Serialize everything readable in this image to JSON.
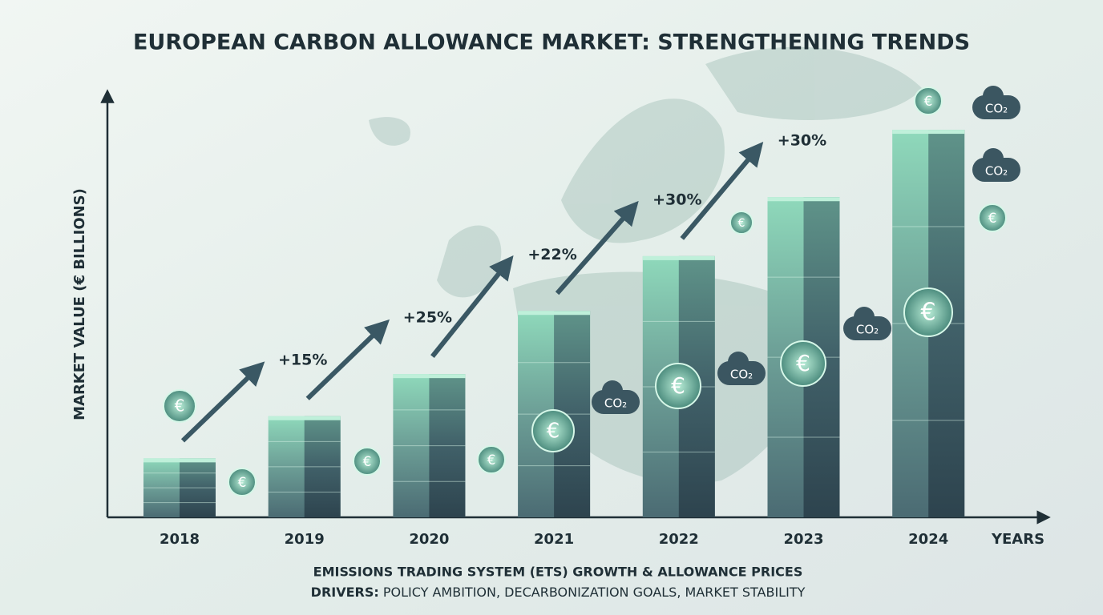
{
  "chart_data": {
    "type": "bar",
    "title": "EUROPEAN CARBON ALLOWANCE MARKET: STRENGTHENING TRENDS",
    "y_axis_label": "MARKET VALUE (€ BILLIONS)",
    "x_axis_label": "YEARS",
    "categories": [
      "2018",
      "2019",
      "2020",
      "2021",
      "2022",
      "2023",
      "2024"
    ],
    "values": [
      14,
      24,
      34,
      49,
      62,
      76,
      92
    ],
    "ylim": [
      0,
      100
    ],
    "color": "#5f9c8f",
    "annotations": [
      "+15%",
      "+25%",
      "+22%",
      "+30%",
      "+30%"
    ],
    "icon_labels": [
      "€",
      "CO₂"
    ],
    "footnote": {
      "line1": "EMISSIONS TRADING SYSTEM (ETS) GROWTH & ALLOWANCE PRICES",
      "drivers_label": "DRIVERS:",
      "drivers_text": "POLICY AMBITION, DECARBONIZATION GOALS, MARKET STABILITY"
    }
  }
}
